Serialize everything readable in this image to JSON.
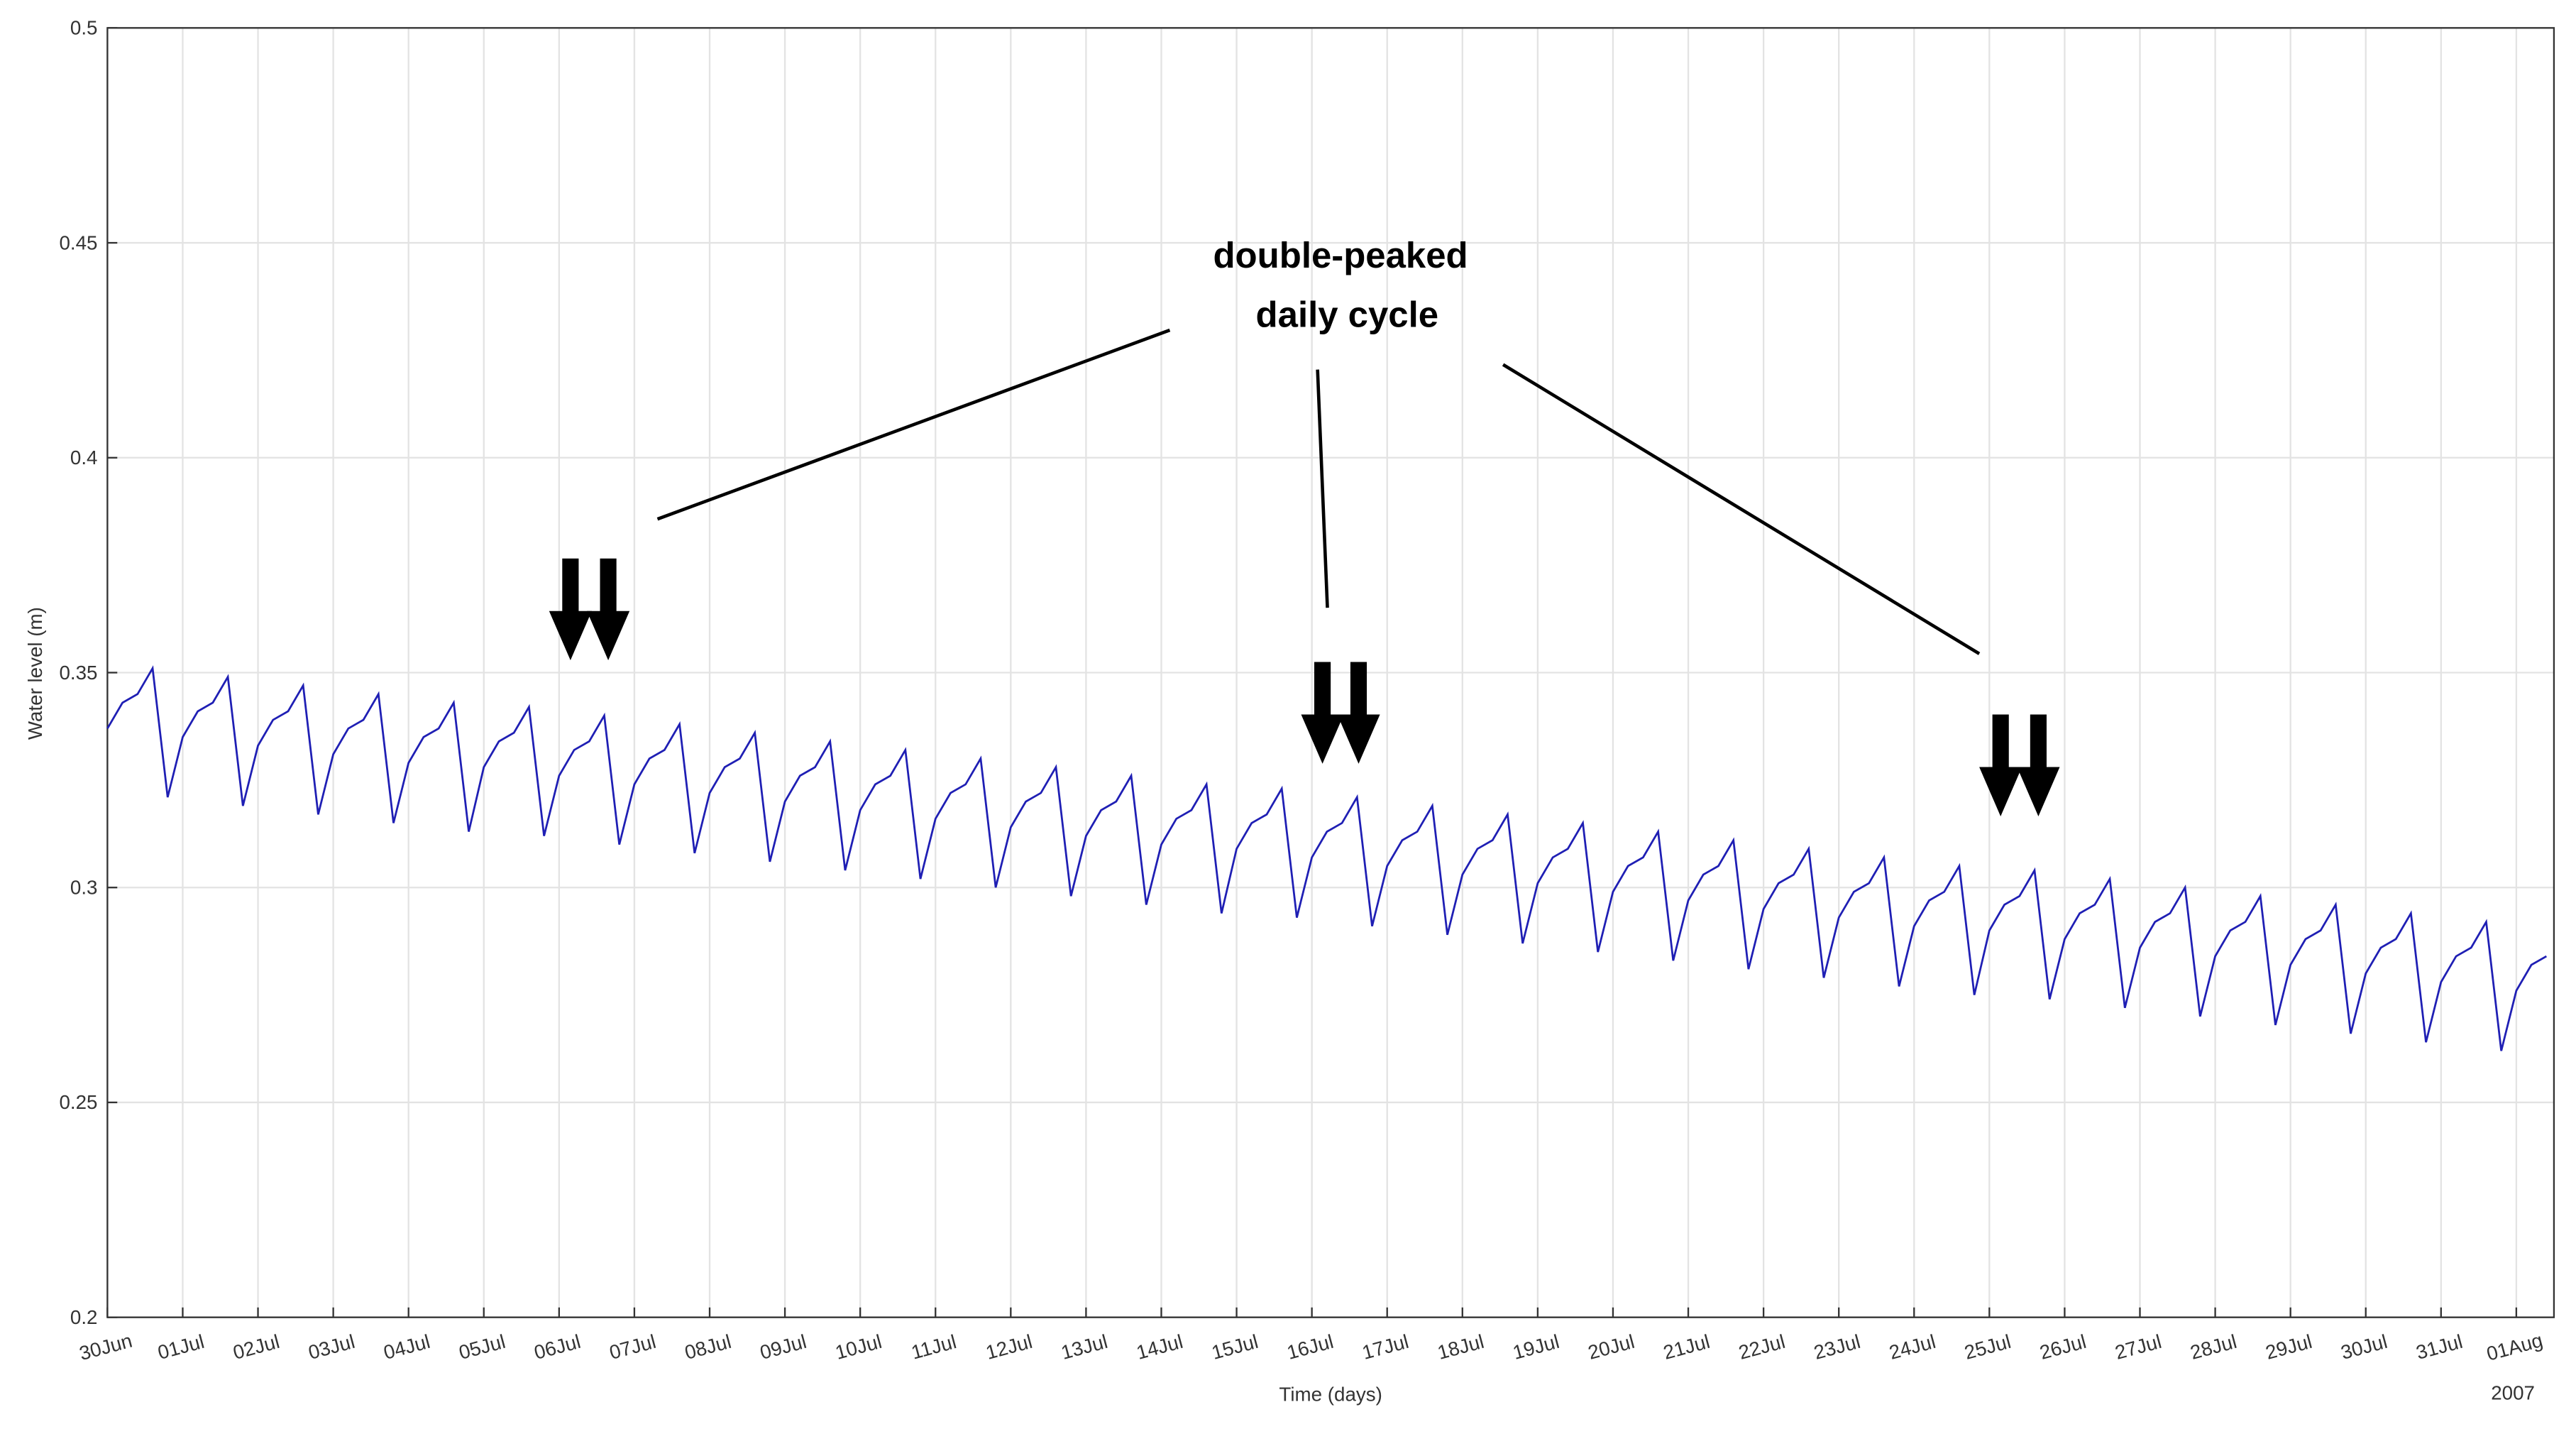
{
  "chart_data": {
    "type": "line",
    "y_label": "Water level (m)",
    "x_label": "Time (days)",
    "x_year": "2007",
    "annotation": [
      "double-peaked",
      "daily cycle"
    ],
    "color": "#1f1fb4",
    "grid": true,
    "xlim": [
      0,
      32.5
    ],
    "ylim": [
      0.2,
      0.5
    ],
    "yticks": [
      0.2,
      0.25,
      0.3,
      0.35,
      0.4,
      0.45,
      0.5
    ],
    "xticks": [
      {
        "value": 0,
        "label": "30Jun"
      },
      {
        "value": 1,
        "label": "01Jul"
      },
      {
        "value": 2,
        "label": "02Jul"
      },
      {
        "value": 3,
        "label": "03Jul"
      },
      {
        "value": 4,
        "label": "04Jul"
      },
      {
        "value": 5,
        "label": "05Jul"
      },
      {
        "value": 6,
        "label": "06Jul"
      },
      {
        "value": 7,
        "label": "07Jul"
      },
      {
        "value": 8,
        "label": "08Jul"
      },
      {
        "value": 9,
        "label": "09Jul"
      },
      {
        "value": 10,
        "label": "10Jul"
      },
      {
        "value": 11,
        "label": "11Jul"
      },
      {
        "value": 12,
        "label": "12Jul"
      },
      {
        "value": 13,
        "label": "13Jul"
      },
      {
        "value": 14,
        "label": "14Jul"
      },
      {
        "value": 15,
        "label": "15Jul"
      },
      {
        "value": 16,
        "label": "16Jul"
      },
      {
        "value": 17,
        "label": "17Jul"
      },
      {
        "value": 18,
        "label": "18Jul"
      },
      {
        "value": 19,
        "label": "19Jul"
      },
      {
        "value": 20,
        "label": "20Jul"
      },
      {
        "value": 21,
        "label": "21Jul"
      },
      {
        "value": 22,
        "label": "22Jul"
      },
      {
        "value": 23,
        "label": "23Jul"
      },
      {
        "value": 24,
        "label": "24Jul"
      },
      {
        "value": 25,
        "label": "25Jul"
      },
      {
        "value": 26,
        "label": "26Jul"
      },
      {
        "value": 27,
        "label": "27Jul"
      },
      {
        "value": 28,
        "label": "28Jul"
      },
      {
        "value": 29,
        "label": "29Jul"
      },
      {
        "value": 30,
        "label": "30Jul"
      },
      {
        "value": 31,
        "label": "31Jul"
      },
      {
        "value": 32,
        "label": "01Aug"
      }
    ],
    "x": [
      0,
      0.2,
      0.4,
      0.6,
      0.8,
      1,
      1.2,
      1.4,
      1.6,
      1.8,
      2,
      2.2,
      2.4,
      2.6,
      2.8,
      3,
      3.2,
      3.4,
      3.6,
      3.8,
      4,
      4.2,
      4.4,
      4.6,
      4.8,
      5,
      5.2,
      5.4,
      5.6,
      5.8,
      6,
      6.2,
      6.4,
      6.6,
      6.8,
      7,
      7.2,
      7.4,
      7.6,
      7.8,
      8,
      8.2,
      8.4,
      8.6,
      8.8,
      9,
      9.2,
      9.4,
      9.6,
      9.8,
      10,
      10.2,
      10.4,
      10.6,
      10.8,
      11,
      11.2,
      11.4,
      11.6,
      11.8,
      12,
      12.2,
      12.4,
      12.6,
      12.8,
      13,
      13.2,
      13.4,
      13.6,
      13.8,
      14,
      14.2,
      14.4,
      14.6,
      14.8,
      15,
      15.2,
      15.4,
      15.6,
      15.8,
      16,
      16.2,
      16.4,
      16.6,
      16.8,
      17,
      17.2,
      17.4,
      17.6,
      17.8,
      18,
      18.2,
      18.4,
      18.6,
      18.8,
      19,
      19.2,
      19.4,
      19.6,
      19.8,
      20,
      20.2,
      20.4,
      20.6,
      20.8,
      21,
      21.2,
      21.4,
      21.6,
      21.8,
      22,
      22.2,
      22.4,
      22.6,
      22.8,
      23,
      23.2,
      23.4,
      23.6,
      23.8,
      24,
      24.2,
      24.4,
      24.6,
      24.8,
      25,
      25.2,
      25.4,
      25.6,
      25.8,
      26,
      26.2,
      26.4,
      26.6,
      26.8,
      27,
      27.2,
      27.4,
      27.6,
      27.8,
      28,
      28.2,
      28.4,
      28.6,
      28.8,
      29,
      29.2,
      29.4,
      29.6,
      29.8,
      30,
      30.2,
      30.4,
      30.6,
      30.8,
      31,
      31.2,
      31.4,
      31.6,
      31.8,
      32,
      32.2,
      32.4
    ],
    "values": [
      0.337,
      0.343,
      0.345,
      0.351,
      0.321,
      0.335,
      0.341,
      0.343,
      0.349,
      0.319,
      0.333,
      0.339,
      0.341,
      0.347,
      0.317,
      0.331,
      0.337,
      0.339,
      0.345,
      0.315,
      0.329,
      0.335,
      0.337,
      0.343,
      0.313,
      0.328,
      0.334,
      0.336,
      0.342,
      0.312,
      0.326,
      0.332,
      0.334,
      0.34,
      0.31,
      0.324,
      0.33,
      0.332,
      0.338,
      0.308,
      0.322,
      0.328,
      0.33,
      0.336,
      0.306,
      0.32,
      0.326,
      0.328,
      0.334,
      0.304,
      0.318,
      0.324,
      0.326,
      0.332,
      0.302,
      0.316,
      0.322,
      0.324,
      0.33,
      0.3,
      0.314,
      0.32,
      0.322,
      0.328,
      0.298,
      0.312,
      0.318,
      0.32,
      0.326,
      0.296,
      0.31,
      0.316,
      0.318,
      0.324,
      0.294,
      0.309,
      0.315,
      0.317,
      0.323,
      0.293,
      0.307,
      0.313,
      0.315,
      0.321,
      0.291,
      0.305,
      0.311,
      0.313,
      0.319,
      0.289,
      0.303,
      0.309,
      0.311,
      0.317,
      0.287,
      0.301,
      0.307,
      0.309,
      0.315,
      0.285,
      0.299,
      0.305,
      0.307,
      0.313,
      0.283,
      0.297,
      0.303,
      0.305,
      0.311,
      0.281,
      0.295,
      0.301,
      0.303,
      0.309,
      0.279,
      0.293,
      0.299,
      0.301,
      0.307,
      0.277,
      0.291,
      0.297,
      0.299,
      0.305,
      0.275,
      0.29,
      0.296,
      0.298,
      0.304,
      0.274,
      0.288,
      0.294,
      0.296,
      0.302,
      0.272,
      0.286,
      0.292,
      0.294,
      0.3,
      0.27,
      0.284,
      0.29,
      0.292,
      0.298,
      0.268,
      0.282,
      0.288,
      0.29,
      0.296,
      0.266,
      0.28,
      0.286,
      0.288,
      0.294,
      0.264,
      0.278,
      0.284,
      0.286,
      0.292,
      0.262,
      0.276,
      0.282,
      0.284
    ]
  }
}
